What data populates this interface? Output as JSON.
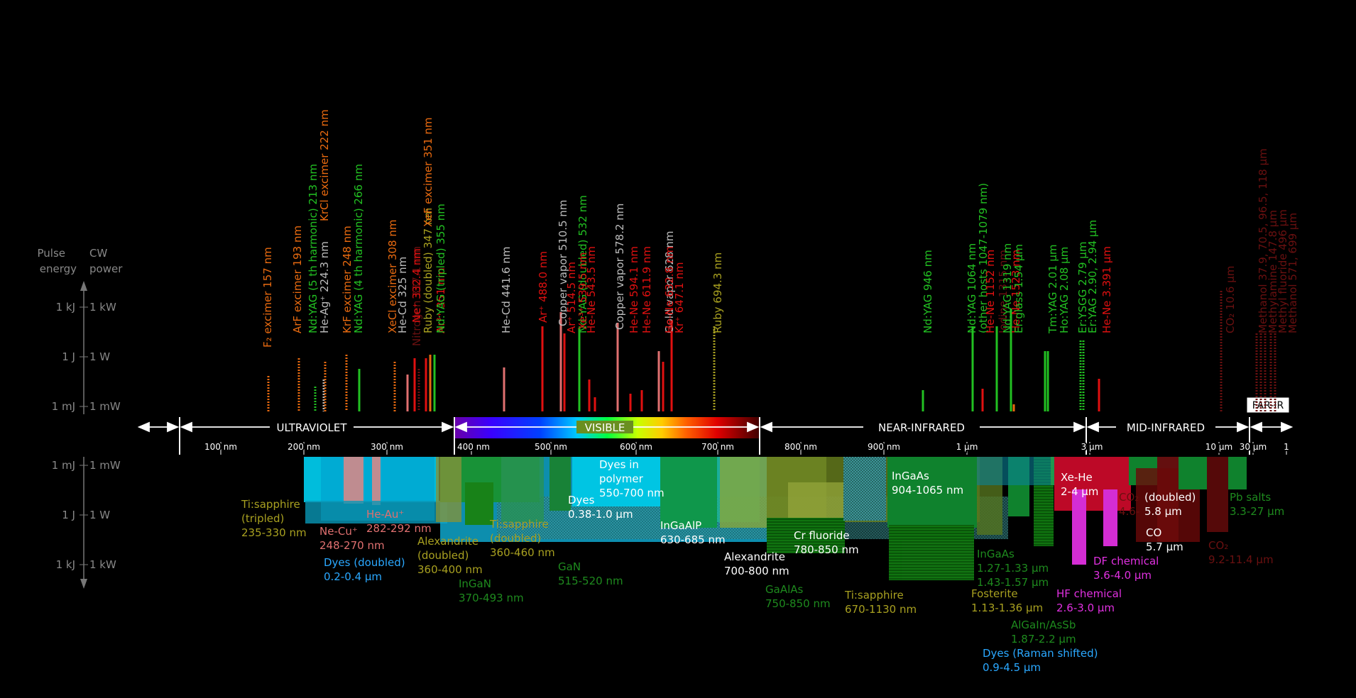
{
  "left_axis": {
    "heading_pulse": [
      "Pulse",
      "energy"
    ],
    "heading_cw": [
      "CW",
      "power"
    ],
    "upper_ticks": [
      {
        "pulse": "1 kJ",
        "cw": "1 kW"
      },
      {
        "pulse": "1 J",
        "cw": "1 W"
      },
      {
        "pulse": "1 mJ",
        "cw": "1 mW"
      }
    ],
    "lower_ticks": [
      {
        "pulse": "1 mJ",
        "cw": "1 mW"
      },
      {
        "pulse": "1 J",
        "cw": "1 W"
      },
      {
        "pulse": "1 kJ",
        "cw": "1 kW"
      }
    ]
  },
  "regions": [
    {
      "label": "ULTRAVIOLET"
    },
    {
      "label": "VISIBLE"
    },
    {
      "label": "NEAR-INFRARED"
    },
    {
      "label": "MID-INFRARED"
    },
    {
      "label": "FAR-IR"
    }
  ],
  "wavelength_ticks": [
    "100 nm",
    "200 nm",
    "300 nm",
    "400 nm",
    "500 nm",
    "600 nm",
    "700 nm",
    "800 nm",
    "900 nm",
    "1 µm",
    "3 µm",
    "10 µm",
    "30 µm",
    "1"
  ],
  "colors": {
    "ir_red": "#e01010",
    "uv_orange": "#e86a10",
    "green_line": "#22c022",
    "pink": "#e07070",
    "olive": "#a8a020",
    "faint": "#6a1010",
    "axis": "#cccccc"
  },
  "gas_lasers": [
    {
      "text": "F₂ excimer  157 nm",
      "color": "uv_orange"
    },
    {
      "text": "ArF excimer  193 nm",
      "color": "uv_orange"
    },
    {
      "text": "Nd:YAG (5 th harmonic)  213 nm",
      "color": "green_line"
    },
    {
      "text": "He-Ag⁺ 224.3 nm",
      "color": "#bbbbbb"
    },
    {
      "text": "KrCl excimer  222 nm",
      "color": "uv_orange"
    },
    {
      "text": "KrF excimer  248 nm",
      "color": "uv_orange"
    },
    {
      "text": "Nd:YAG (4 th harmonic)  266 nm",
      "color": "green_line"
    },
    {
      "text": "XeCl excimer  308 nm",
      "color": "uv_orange"
    },
    {
      "text": "He-Cd  325 nm",
      "color": "#bbbbbb"
    },
    {
      "text": "Nitrogen  337.1 nm",
      "color": "faint"
    },
    {
      "text": "Ne⁺  332.4 nm",
      "color": "ir_red"
    },
    {
      "text": "Ruby (doubled)  347 nm",
      "color": "olive"
    },
    {
      "text": "XeF excimer  351 nm",
      "color": "uv_orange"
    },
    {
      "text": "Ar³⁺ 351 nm",
      "color": "ir_red"
    },
    {
      "text": "Nd:YAG (tripled)  355 nm",
      "color": "green_line"
    },
    {
      "text": "He-Cd  441.6 nm",
      "color": "#bbbbbb"
    },
    {
      "text": "Ar⁺ 488.0 nm",
      "color": "ir_red"
    },
    {
      "text": "Copper vapor  510.5 nm",
      "color": "#bbbbbb"
    },
    {
      "text": "Ar⁺ 514.5 nm",
      "color": "ir_red"
    },
    {
      "text": "Nd:YAG (doubled)  532 nm",
      "color": "green_line"
    },
    {
      "text": "Xe³⁺ 539.5 nm",
      "color": "ir_red"
    },
    {
      "text": "He-Ne  543.5 nm",
      "color": "ir_red"
    },
    {
      "text": "Copper vapor  578.2 nm",
      "color": "#bbbbbb"
    },
    {
      "text": "He-Ne  594.1 nm",
      "color": "ir_red"
    },
    {
      "text": "He-Ne  611.9 nm",
      "color": "ir_red"
    },
    {
      "text": "Gold vapor  628 nm",
      "color": "#bbbbbb"
    },
    {
      "text": "He-Ne  632.8 nm",
      "color": "ir_red"
    },
    {
      "text": "Kr⁺ 647.1 nm",
      "color": "ir_red"
    },
    {
      "text": "Ruby  694.3 nm",
      "color": "olive"
    },
    {
      "text": "Nd:YAG  946 nm",
      "color": "green_line"
    },
    {
      "text": "Nd:YAG  1064 nm",
      "color": "green_line"
    },
    {
      "text": "(other hosts  1047-1079 nm)",
      "color": "green_line"
    },
    {
      "text": "He-Ne  1152 nm",
      "color": "ir_red"
    },
    {
      "text": "Iodine  1315 nm",
      "color": "faint"
    },
    {
      "text": "Nd:YAG  1319 nm",
      "color": "green_line"
    },
    {
      "text": "He-Ne  1523 nm",
      "color": "ir_red"
    },
    {
      "text": "Er:glass  1.54 µm",
      "color": "green_line"
    },
    {
      "text": "Tm:YAG  2.01 µm",
      "color": "green_line"
    },
    {
      "text": "Ho:YAG  2.08 µm",
      "color": "green_line"
    },
    {
      "text": "Er:YSGG  2.79 µm",
      "color": "green_line"
    },
    {
      "text": "Er:YAG  2.90, 2.94 µm",
      "color": "green_line"
    },
    {
      "text": "He-Ne  3.391 µm",
      "color": "ir_red"
    },
    {
      "text": "CO₂  10.6 µm",
      "color": "faint"
    },
    {
      "text": "Methanol  37.9, 70.5, 96.5, 118 µm",
      "color": "faint"
    },
    {
      "text": "Methylamine  147.8 µm",
      "color": "faint"
    },
    {
      "text": "Methyl fluoride  496 µm",
      "color": "faint"
    },
    {
      "text": "Methanol  571, 699 µm",
      "color": "faint"
    }
  ],
  "tunable_labels": [
    {
      "lines": [
        "Ti:sapphire",
        "(tripled)",
        "235-330 nm"
      ],
      "color": "olive"
    },
    {
      "lines": [
        "He-Au⁺",
        "282-292 nm"
      ],
      "color": "pink"
    },
    {
      "lines": [
        "Ne-Cu⁺",
        "248-270 nm"
      ],
      "color": "pink"
    },
    {
      "lines": [
        "Dyes (doubled)",
        "0.2-0.4 µm"
      ],
      "color": "#2aa8ff"
    },
    {
      "lines": [
        "Alexandrite",
        "(doubled)",
        "360-400 nm"
      ],
      "color": "olive"
    },
    {
      "lines": [
        "InGaN",
        "370-493 nm"
      ],
      "color": "#1e8a1e"
    },
    {
      "lines": [
        "Ti:sapphire",
        "(doubled)",
        "360-460 nm"
      ],
      "color": "olive"
    },
    {
      "lines": [
        "GaN",
        "515-520 nm"
      ],
      "color": "#1e8a1e"
    },
    {
      "lines": [
        "Dyes",
        "0.38-1.0 µm"
      ],
      "color": "#ffffff"
    },
    {
      "lines": [
        "Dyes in",
        "polymer",
        "550-700 nm"
      ],
      "color": "#ffffff"
    },
    {
      "lines": [
        "InGaAlP",
        "630-685 nm"
      ],
      "color": "#ffffff"
    },
    {
      "lines": [
        "Alexandrite",
        "700-800 nm"
      ],
      "color": "#ffffff"
    },
    {
      "lines": [
        "Cr fluoride",
        "780-850 nm"
      ],
      "color": "#ffffff"
    },
    {
      "lines": [
        "GaAlAs",
        "750-850 nm"
      ],
      "color": "#1e8a1e"
    },
    {
      "lines": [
        "Ti:sapphire",
        "670-1130 nm"
      ],
      "color": "olive"
    },
    {
      "lines": [
        "InGaAs",
        "904-1065 nm"
      ],
      "color": "#ffffff"
    },
    {
      "lines": [
        "InGaAs",
        "1.27-1.33 µm",
        "1.43-1.57 µm"
      ],
      "color": "#1e8a1e"
    },
    {
      "lines": [
        "Fosterite",
        "1.13-1.36 µm"
      ],
      "color": "olive"
    },
    {
      "lines": [
        "AlGaIn/AsSb",
        "1.87-2.2 µm"
      ],
      "color": "#1e8a1e"
    },
    {
      "lines": [
        "Dyes (Raman shifted)",
        "0.9-4.5 µm"
      ],
      "color": "#2aa8ff"
    },
    {
      "lines": [
        "HF chemical",
        "2.6-3.0 µm"
      ],
      "color": "#e030e0"
    },
    {
      "lines": [
        "DF chemical",
        "3.6-4.0 µm"
      ],
      "color": "#e030e0"
    },
    {
      "lines": [
        "Xe-He",
        "2-4 µm"
      ],
      "color": "#ffffff"
    },
    {
      "lines": [
        "CO₂",
        "4.6-"
      ],
      "color": "faint"
    },
    {
      "lines": [
        "(doubled)",
        "5.8 µm"
      ],
      "color": "#ffffff"
    },
    {
      "lines": [
        "CO",
        "5.7 µm"
      ],
      "color": "#ffffff"
    },
    {
      "lines": [
        "CO₂",
        "9.2-11.4 µm"
      ],
      "color": "faint"
    },
    {
      "lines": [
        "Pb salts",
        "3.3-27 µm"
      ],
      "color": "#1e8a1e"
    }
  ]
}
